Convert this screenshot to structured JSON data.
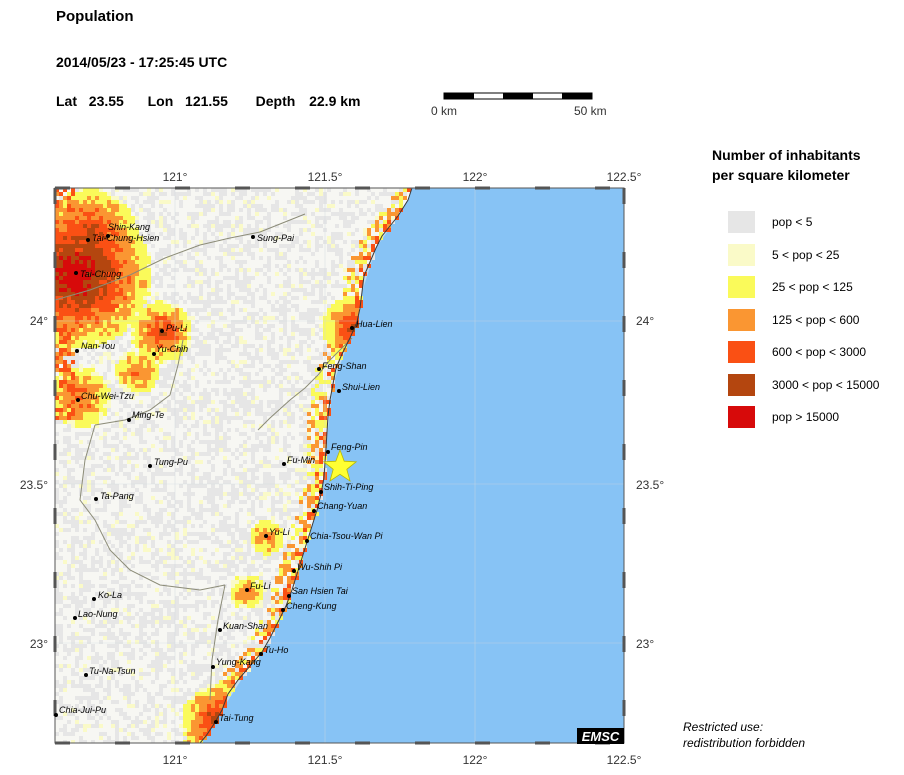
{
  "title": "Population",
  "datetime": "2014/05/23 - 17:25:45 UTC",
  "location": {
    "lat_label": "Lat",
    "lat": "23.55",
    "lon_label": "Lon",
    "lon": "121.55",
    "depth_label": "Depth",
    "depth": "22.9 km"
  },
  "scale_bar": {
    "start_label": "0 km",
    "end_label": "50 km"
  },
  "legend": {
    "title_line1": "Number of inhabitants",
    "title_line2": "per square kilometer",
    "items": [
      {
        "label": "pop < 5",
        "color": "#e6e6e6"
      },
      {
        "label": "5 < pop < 25",
        "color": "#fafac8"
      },
      {
        "label": "25 < pop < 125",
        "color": "#fafa5a"
      },
      {
        "label": "125 < pop < 600",
        "color": "#fa9632"
      },
      {
        "label": "600 < pop < 3000",
        "color": "#fa5014"
      },
      {
        "label": "3000 < pop < 15000",
        "color": "#b4460f"
      },
      {
        "label": "pop > 15000",
        "color": "#d70a0a"
      }
    ]
  },
  "axes": {
    "lon_ticks": [
      "121°",
      "121.5°",
      "122°",
      "122.5°"
    ],
    "lat_ticks": [
      "24°",
      "23.5°",
      "23°"
    ]
  },
  "cities": [
    {
      "name": "Shin-Kang"
    },
    {
      "name": "Tai-Chung-Hsien"
    },
    {
      "name": "Tai-Chung"
    },
    {
      "name": "Sung-Pai"
    },
    {
      "name": "Pu-Li"
    },
    {
      "name": "Nan-Tou"
    },
    {
      "name": "Yu-Chih"
    },
    {
      "name": "Hua-Lien"
    },
    {
      "name": "Feng-Shan"
    },
    {
      "name": "Shui-Lien"
    },
    {
      "name": "Chu-Wei-Tzu"
    },
    {
      "name": "Ming-Te"
    },
    {
      "name": "Feng-Pin"
    },
    {
      "name": "Fu-Min"
    },
    {
      "name": "Tung-Pu"
    },
    {
      "name": "Shih-Ti-Ping"
    },
    {
      "name": "Ta-Pang"
    },
    {
      "name": "Chang-Yuan"
    },
    {
      "name": "Yu-Li"
    },
    {
      "name": "Chia-Tsou-Wan Pi"
    },
    {
      "name": "Wu-Shih Pi"
    },
    {
      "name": "Fu-Li"
    },
    {
      "name": "Ko-La"
    },
    {
      "name": "San Hsien Tai"
    },
    {
      "name": "Cheng-Kung"
    },
    {
      "name": "Lao-Nung"
    },
    {
      "name": "Kuan-Shan"
    },
    {
      "name": "Tu-Ho"
    },
    {
      "name": "Yung-Kang"
    },
    {
      "name": "Tu-Na-Tsun"
    },
    {
      "name": "Chia-Jui-Pu"
    },
    {
      "name": "Tai-Tung"
    }
  ],
  "epicenter": {
    "lat": 23.55,
    "lon": 121.55,
    "color": "#ffff33"
  },
  "colors": {
    "sea": "#87c3f5",
    "land": "#ffffff",
    "frame": "#555555"
  },
  "badge": "EMSC",
  "restricted_line1": "Restricted use:",
  "restricted_line2": "redistribution forbidden"
}
